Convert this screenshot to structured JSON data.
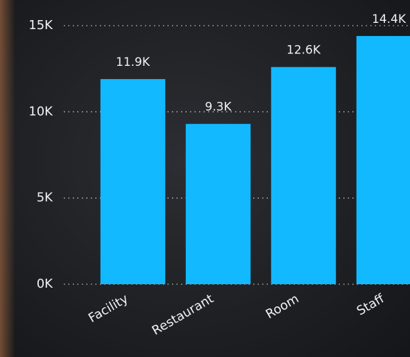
{
  "chart_data": {
    "type": "bar",
    "categories": [
      "Facility",
      "Restaurant",
      "Room",
      "Staff"
    ],
    "values": [
      11900,
      9300,
      12600,
      14400
    ],
    "value_labels": [
      "11.9K",
      "9.3K",
      "12.6K",
      "14.4K"
    ],
    "color": "#12b9ff",
    "ylim": [
      0,
      15000
    ],
    "yticks": [
      {
        "value": 0,
        "label": "0K"
      },
      {
        "value": 5000,
        "label": "5K"
      },
      {
        "value": 10000,
        "label": "10K"
      },
      {
        "value": 15000,
        "label": "15K"
      }
    ],
    "grid": true
  }
}
